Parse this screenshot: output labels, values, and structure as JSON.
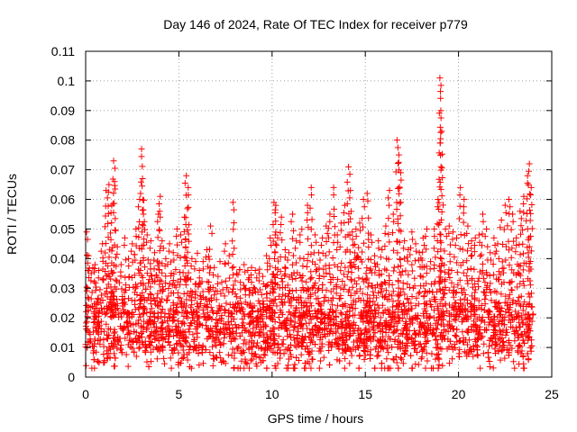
{
  "chart_data": {
    "type": "scatter",
    "title": "Day 146 of 2024, Rate Of TEC Index for receiver p779",
    "xlabel": "GPS time / hours",
    "ylabel": "ROTI / TECUs",
    "xlim": [
      0,
      25
    ],
    "ylim": [
      0,
      0.11
    ],
    "xticks": [
      0,
      5,
      10,
      15,
      20,
      25
    ],
    "xtick_labels": [
      "0",
      "5",
      "10",
      "15",
      "20",
      "25"
    ],
    "yticks": [
      0,
      0.01,
      0.02,
      0.03,
      0.04,
      0.05,
      0.06,
      0.07,
      0.08,
      0.09,
      0.1,
      0.11
    ],
    "ytick_labels": [
      "0",
      "0.01",
      "0.02",
      "0.03",
      "0.04",
      "0.05",
      "0.06",
      "0.07",
      "0.08",
      "0.09",
      "0.1",
      "0.11"
    ],
    "grid": true,
    "marker": "+",
    "series": [
      {
        "name": "ROTI",
        "color": "#ff0000",
        "x": [
          0.05,
          0.15,
          0.3,
          0.5,
          0.7,
          0.9,
          1.1,
          1.25,
          1.4,
          1.5,
          1.55,
          1.7,
          1.9,
          2.1,
          2.3,
          2.5,
          2.7,
          2.9,
          3.0,
          3.05,
          3.1,
          3.3,
          3.5,
          3.7,
          3.9,
          4.0,
          4.1,
          4.3,
          4.5,
          4.7,
          4.9,
          5.1,
          5.3,
          5.4,
          5.5,
          5.7,
          5.9,
          6.1,
          6.3,
          6.5,
          6.7,
          6.9,
          7.1,
          7.3,
          7.5,
          7.7,
          7.9,
          8.1,
          8.3,
          8.5,
          8.7,
          8.9,
          9.1,
          9.3,
          9.5,
          9.7,
          9.9,
          10.1,
          10.2,
          10.3,
          10.5,
          10.7,
          10.9,
          11.1,
          11.3,
          11.5,
          11.7,
          11.9,
          12.1,
          12.3,
          12.5,
          12.7,
          12.9,
          13.1,
          13.3,
          13.5,
          13.7,
          13.9,
          14.1,
          14.2,
          14.3,
          14.5,
          14.7,
          14.9,
          15.1,
          15.3,
          15.5,
          15.7,
          15.9,
          16.1,
          16.3,
          16.5,
          16.7,
          16.8,
          16.9,
          17.1,
          17.3,
          17.5,
          17.7,
          17.9,
          18.1,
          18.3,
          18.5,
          18.7,
          18.9,
          19.0,
          19.05,
          19.1,
          19.3,
          19.5,
          19.7,
          19.9,
          20.1,
          20.3,
          20.5,
          20.7,
          20.9,
          21.1,
          21.3,
          21.5,
          21.7,
          21.9,
          22.1,
          22.3,
          22.5,
          22.7,
          22.9,
          23.1,
          23.3,
          23.5,
          23.7,
          23.8,
          23.9
        ],
        "y": [
          0.049,
          0.041,
          0.035,
          0.038,
          0.036,
          0.045,
          0.063,
          0.065,
          0.058,
          0.073,
          0.066,
          0.044,
          0.038,
          0.047,
          0.04,
          0.045,
          0.05,
          0.06,
          0.077,
          0.067,
          0.055,
          0.048,
          0.046,
          0.042,
          0.055,
          0.061,
          0.046,
          0.04,
          0.045,
          0.042,
          0.05,
          0.048,
          0.054,
          0.068,
          0.064,
          0.04,
          0.039,
          0.036,
          0.039,
          0.043,
          0.051,
          0.037,
          0.034,
          0.032,
          0.045,
          0.041,
          0.059,
          0.035,
          0.032,
          0.038,
          0.036,
          0.037,
          0.036,
          0.035,
          0.034,
          0.041,
          0.047,
          0.059,
          0.058,
          0.047,
          0.054,
          0.043,
          0.042,
          0.055,
          0.046,
          0.048,
          0.04,
          0.058,
          0.064,
          0.048,
          0.042,
          0.047,
          0.051,
          0.055,
          0.064,
          0.048,
          0.052,
          0.058,
          0.071,
          0.063,
          0.049,
          0.05,
          0.052,
          0.06,
          0.062,
          0.048,
          0.041,
          0.046,
          0.043,
          0.051,
          0.063,
          0.055,
          0.08,
          0.075,
          0.069,
          0.046,
          0.043,
          0.049,
          0.045,
          0.042,
          0.047,
          0.05,
          0.039,
          0.05,
          0.06,
          0.101,
          0.09,
          0.083,
          0.05,
          0.051,
          0.049,
          0.047,
          0.064,
          0.06,
          0.051,
          0.046,
          0.047,
          0.048,
          0.055,
          0.05,
          0.042,
          0.047,
          0.045,
          0.053,
          0.058,
          0.06,
          0.055,
          0.047,
          0.056,
          0.061,
          0.068,
          0.072,
          0.064
        ]
      }
    ],
    "bulk_band": {
      "description": "dense scatter of ROTI samples spanning the full day",
      "x_range": [
        0,
        24
      ],
      "y_typical": [
        0.005,
        0.03
      ],
      "y_center": 0.015
    }
  }
}
